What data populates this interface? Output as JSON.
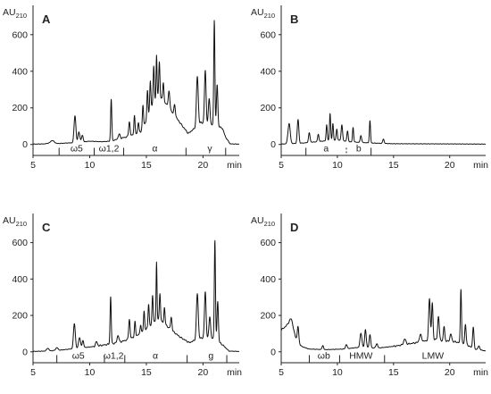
{
  "chart_data": [
    {
      "type": "line",
      "panel_label": "A",
      "y_unit": "AU",
      "y_unit_sub": "210",
      "x_unit": "min",
      "xlim": [
        5,
        23.2
      ],
      "ylim": [
        -60,
        760
      ],
      "x_ticks": [
        5,
        10,
        15,
        20
      ],
      "y_ticks": [
        0,
        200,
        400,
        600
      ],
      "fraction_dividers": [
        {
          "x": 7.3,
          "style": "solid"
        },
        {
          "x": 10.4,
          "style": "solid"
        },
        {
          "x": 13.0,
          "style": "solid"
        },
        {
          "x": 18.5,
          "style": "solid"
        },
        {
          "x": 22.0,
          "style": "solid"
        }
      ],
      "fractions": [
        {
          "label": "ω5",
          "x": 8.85
        },
        {
          "label": "ω1,2",
          "x": 11.7
        },
        {
          "label": "α",
          "x": 15.75
        },
        {
          "label": "γ",
          "x": 20.6
        }
      ],
      "baseline": [
        [
          5,
          2
        ],
        [
          6,
          3
        ],
        [
          6.7,
          10
        ],
        [
          7.2,
          5
        ],
        [
          8,
          8
        ],
        [
          9,
          10
        ],
        [
          10,
          18
        ],
        [
          11,
          15
        ],
        [
          11.9,
          18
        ],
        [
          12.5,
          30
        ],
        [
          13.5,
          45
        ],
        [
          14.5,
          70
        ],
        [
          15,
          130
        ],
        [
          15.5,
          210
        ],
        [
          16,
          270
        ],
        [
          16.5,
          240
        ],
        [
          17,
          200
        ],
        [
          17.6,
          150
        ],
        [
          18.2,
          100
        ],
        [
          18.7,
          60
        ],
        [
          19.3,
          90
        ],
        [
          19.8,
          120
        ],
        [
          20.6,
          110
        ],
        [
          21.2,
          100
        ],
        [
          21.7,
          90
        ],
        [
          22,
          40
        ],
        [
          22.4,
          3
        ],
        [
          23.2,
          2
        ]
      ],
      "peaks": [
        [
          6.7,
          12,
          0.15
        ],
        [
          8.7,
          150,
          0.08
        ],
        [
          9.05,
          60,
          0.08
        ],
        [
          9.35,
          40,
          0.07
        ],
        [
          11.9,
          230,
          0.05
        ],
        [
          12.6,
          25,
          0.08
        ],
        [
          13.5,
          80,
          0.06
        ],
        [
          13.95,
          100,
          0.05
        ],
        [
          14.3,
          55,
          0.05
        ],
        [
          14.7,
          120,
          0.05
        ],
        [
          15.1,
          150,
          0.05
        ],
        [
          15.35,
          160,
          0.05
        ],
        [
          15.65,
          200,
          0.05
        ],
        [
          15.9,
          230,
          0.04
        ],
        [
          16.15,
          190,
          0.05
        ],
        [
          16.5,
          100,
          0.05
        ],
        [
          17.0,
          90,
          0.07
        ],
        [
          17.5,
          60,
          0.06
        ],
        [
          19.5,
          270,
          0.08
        ],
        [
          20.2,
          290,
          0.07
        ],
        [
          20.55,
          140,
          0.07
        ],
        [
          21.0,
          580,
          0.05
        ],
        [
          21.25,
          230,
          0.06
        ]
      ]
    },
    {
      "type": "line",
      "panel_label": "B",
      "y_unit": "AU",
      "y_unit_sub": "210",
      "x_unit": "min",
      "xlim": [
        5,
        23.2
      ],
      "ylim": [
        -60,
        760
      ],
      "x_ticks": [
        5,
        10,
        15,
        20
      ],
      "y_ticks": [
        0,
        200,
        400,
        600
      ],
      "fraction_dividers": [
        {
          "x": 7.2,
          "style": "solid"
        },
        {
          "x": 10.8,
          "style": "dashed"
        },
        {
          "x": 13.0,
          "style": "solid"
        }
      ],
      "fractions": [
        {
          "label": "a",
          "x": 9.0
        },
        {
          "label": "b",
          "x": 11.9
        }
      ],
      "baseline": [
        [
          5,
          2
        ],
        [
          7,
          8
        ],
        [
          9,
          20
        ],
        [
          10,
          25
        ],
        [
          11,
          15
        ],
        [
          13,
          8
        ],
        [
          15,
          4
        ],
        [
          20,
          3
        ],
        [
          23.2,
          2
        ]
      ],
      "peaks": [
        [
          5.7,
          110,
          0.1
        ],
        [
          6.5,
          130,
          0.07
        ],
        [
          7.5,
          50,
          0.07
        ],
        [
          8.3,
          40,
          0.06
        ],
        [
          9.05,
          90,
          0.05
        ],
        [
          9.35,
          150,
          0.05
        ],
        [
          9.6,
          90,
          0.05
        ],
        [
          9.95,
          60,
          0.05
        ],
        [
          10.4,
          90,
          0.06
        ],
        [
          10.9,
          55,
          0.06
        ],
        [
          11.4,
          80,
          0.05
        ],
        [
          12.1,
          40,
          0.06
        ],
        [
          12.9,
          120,
          0.05
        ],
        [
          14.1,
          25,
          0.06
        ]
      ]
    },
    {
      "type": "line",
      "panel_label": "C",
      "y_unit": "AU",
      "y_unit_sub": "210",
      "x_unit": "min",
      "xlim": [
        5,
        23.2
      ],
      "ylim": [
        -60,
        760
      ],
      "x_ticks": [
        5,
        10,
        15,
        20
      ],
      "y_ticks": [
        0,
        200,
        400,
        600
      ],
      "fraction_dividers": [
        {
          "x": 7.1,
          "style": "solid"
        },
        {
          "x": 11.3,
          "style": "solid"
        },
        {
          "x": 13.1,
          "style": "solid"
        },
        {
          "x": 18.6,
          "style": "solid"
        },
        {
          "x": 22.1,
          "style": "solid"
        }
      ],
      "fractions": [
        {
          "label": "ω5",
          "x": 9.0
        },
        {
          "label": "ω1,2",
          "x": 12.1
        },
        {
          "label": "α",
          "x": 15.8
        },
        {
          "label": "g",
          "x": 20.7
        }
      ],
      "baseline": [
        [
          5,
          2
        ],
        [
          6.5,
          5
        ],
        [
          7.5,
          10
        ],
        [
          9,
          20
        ],
        [
          10.5,
          30
        ],
        [
          11.5,
          40
        ],
        [
          12.5,
          50
        ],
        [
          13.5,
          70
        ],
        [
          14.5,
          100
        ],
        [
          15.5,
          150
        ],
        [
          16,
          180
        ],
        [
          16.5,
          160
        ],
        [
          17.2,
          120
        ],
        [
          18,
          80
        ],
        [
          18.8,
          50
        ],
        [
          19.5,
          70
        ],
        [
          20.2,
          80
        ],
        [
          21,
          70
        ],
        [
          21.7,
          40
        ],
        [
          22.3,
          4
        ],
        [
          23.2,
          2
        ]
      ],
      "peaks": [
        [
          6.3,
          15,
          0.1
        ],
        [
          7.1,
          15,
          0.1
        ],
        [
          8.65,
          140,
          0.08
        ],
        [
          9.1,
          60,
          0.08
        ],
        [
          9.4,
          40,
          0.07
        ],
        [
          10.6,
          25,
          0.08
        ],
        [
          11.85,
          260,
          0.05
        ],
        [
          12.5,
          40,
          0.08
        ],
        [
          13.5,
          110,
          0.06
        ],
        [
          14.0,
          80,
          0.05
        ],
        [
          14.5,
          50,
          0.05
        ],
        [
          14.8,
          110,
          0.05
        ],
        [
          15.2,
          130,
          0.05
        ],
        [
          15.55,
          160,
          0.05
        ],
        [
          15.9,
          320,
          0.04
        ],
        [
          16.2,
          150,
          0.05
        ],
        [
          16.6,
          90,
          0.05
        ],
        [
          17.2,
          70,
          0.06
        ],
        [
          19.5,
          250,
          0.08
        ],
        [
          20.2,
          250,
          0.07
        ],
        [
          20.6,
          120,
          0.07
        ],
        [
          21.05,
          550,
          0.05
        ],
        [
          21.3,
          220,
          0.06
        ]
      ]
    },
    {
      "type": "line",
      "panel_label": "D",
      "y_unit": "AU",
      "y_unit_sub": "210",
      "x_unit": "min",
      "xlim": [
        5,
        23.2
      ],
      "ylim": [
        -60,
        760
      ],
      "x_ticks": [
        5,
        10,
        15,
        20
      ],
      "y_ticks": [
        0,
        200,
        400,
        600
      ],
      "fraction_dividers": [
        {
          "x": 7.5,
          "style": "solid"
        },
        {
          "x": 10.2,
          "style": "solid"
        },
        {
          "x": 14.2,
          "style": "solid"
        }
      ],
      "fractions": [
        {
          "label": "ωb",
          "x": 8.8
        },
        {
          "label": "HMW",
          "x": 12.1
        },
        {
          "label": "LMW",
          "x": 18.5
        }
      ],
      "baseline": [
        [
          5,
          120
        ],
        [
          5.6,
          150
        ],
        [
          6.2,
          90
        ],
        [
          6.8,
          30
        ],
        [
          7.5,
          15
        ],
        [
          9,
          12
        ],
        [
          10.5,
          15
        ],
        [
          12,
          25
        ],
        [
          13.5,
          20
        ],
        [
          15,
          30
        ],
        [
          16.5,
          45
        ],
        [
          17.5,
          55
        ],
        [
          18.5,
          70
        ],
        [
          19.5,
          60
        ],
        [
          20.5,
          55
        ],
        [
          21.5,
          40
        ],
        [
          22.2,
          15
        ],
        [
          23.2,
          5
        ]
      ],
      "peaks": [
        [
          5.9,
          60,
          0.15
        ],
        [
          6.5,
          80,
          0.06
        ],
        [
          8.7,
          25,
          0.06
        ],
        [
          10.8,
          25,
          0.07
        ],
        [
          12.1,
          80,
          0.08
        ],
        [
          12.5,
          100,
          0.07
        ],
        [
          12.9,
          70,
          0.07
        ],
        [
          13.5,
          25,
          0.08
        ],
        [
          16.0,
          30,
          0.1
        ],
        [
          17.4,
          40,
          0.1
        ],
        [
          18.2,
          230,
          0.07
        ],
        [
          18.45,
          200,
          0.06
        ],
        [
          19.0,
          130,
          0.07
        ],
        [
          19.5,
          80,
          0.06
        ],
        [
          20.1,
          40,
          0.08
        ],
        [
          21.0,
          300,
          0.05
        ],
        [
          21.4,
          110,
          0.06
        ],
        [
          22.1,
          120,
          0.06
        ],
        [
          22.6,
          20,
          0.08
        ]
      ]
    }
  ]
}
